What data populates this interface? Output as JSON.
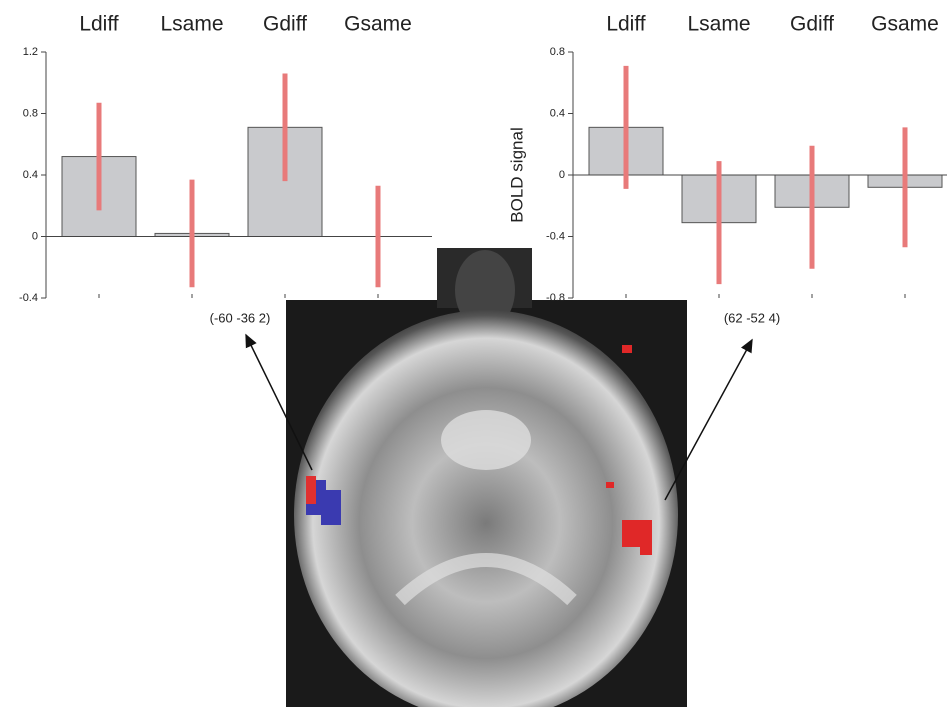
{
  "chart_data": [
    {
      "type": "bar",
      "categories": [
        "Ldiff",
        "Lsame",
        "Gdiff",
        "Gsame"
      ],
      "values": [
        0.52,
        0.02,
        0.71,
        0
      ],
      "errors": [
        0.35,
        0.35,
        0.35,
        0.33
      ],
      "color": "#c9cacd",
      "error_color": "#e87a7a",
      "ylim": [
        -0.4,
        1.2
      ],
      "yticks": [
        -0.4,
        0,
        0.4,
        0.8,
        1.2
      ],
      "annotation": "(-60 -36 2)"
    },
    {
      "type": "bar",
      "categories": [
        "Ldiff",
        "Lsame",
        "Gdiff",
        "Gsame"
      ],
      "values": [
        0.31,
        -0.31,
        -0.21,
        -0.08
      ],
      "errors": [
        0.4,
        0.4,
        0.4,
        0.39
      ],
      "color": "#c9cacd",
      "error_color": "#e87a7a",
      "ylim": [
        -0.8,
        0.8
      ],
      "yticks": [
        -0.8,
        -0.4,
        0,
        0.4,
        0.8
      ],
      "y_label": "BOLD signal",
      "annotation": "(62 -52 4)"
    }
  ]
}
